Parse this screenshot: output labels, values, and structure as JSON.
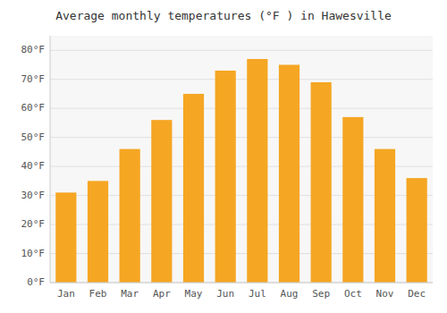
{
  "chart_data": {
    "type": "bar",
    "title": "Average monthly temperatures (°F ) in Hawesville",
    "categories": [
      "Jan",
      "Feb",
      "Mar",
      "Apr",
      "May",
      "Jun",
      "Jul",
      "Aug",
      "Sep",
      "Oct",
      "Nov",
      "Dec"
    ],
    "values": [
      31,
      35,
      46,
      56,
      65,
      73,
      77,
      75,
      69,
      57,
      46,
      36
    ],
    "color": "#F5A623",
    "ylim": [
      0,
      85
    ],
    "yticks": [
      {
        "value": 0,
        "label": "0°F"
      },
      {
        "value": 10,
        "label": "10°F"
      },
      {
        "value": 20,
        "label": "20°F"
      },
      {
        "value": 30,
        "label": "30°F"
      },
      {
        "value": 40,
        "label": "40°F"
      },
      {
        "value": 50,
        "label": "50°F"
      },
      {
        "value": 60,
        "label": "60°F"
      },
      {
        "value": 70,
        "label": "70°F"
      },
      {
        "value": 80,
        "label": "80°F"
      }
    ],
    "grid": true
  }
}
